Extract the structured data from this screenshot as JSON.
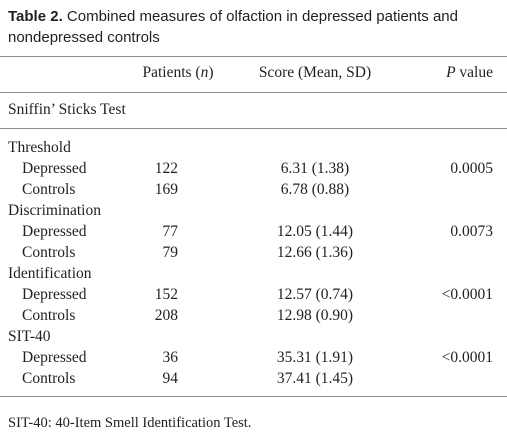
{
  "title": {
    "label": "Table 2.",
    "text": "Combined measures of olfaction in depressed patients and nondepressed controls"
  },
  "header": {
    "patients": {
      "pre": "Patients (",
      "italic": "n",
      "post": ")"
    },
    "score": "Score (Mean, SD)",
    "p": {
      "italic": "P",
      "post": " value"
    }
  },
  "section": "Sniffin’ Sticks Test",
  "groups": [
    {
      "name": "Threshold",
      "rows": [
        {
          "label": "Depressed",
          "patients": 122,
          "score": "6.31 (1.38)",
          "p": "0.0005"
        },
        {
          "label": "Controls",
          "patients": 169,
          "score": "6.78 (0.88)"
        }
      ]
    },
    {
      "name": "Discrimination",
      "rows": [
        {
          "label": "Depressed",
          "patients": 77,
          "score": "12.05 (1.44)",
          "p": "0.0073"
        },
        {
          "label": "Controls",
          "patients": 79,
          "score": "12.66 (1.36)"
        }
      ]
    },
    {
      "name": "Identification",
      "rows": [
        {
          "label": "Depressed",
          "patients": 152,
          "score": "12.57 (0.74)",
          "p": "<0.0001"
        },
        {
          "label": "Controls",
          "patients": 208,
          "score": "12.98 (0.90)"
        }
      ]
    },
    {
      "name": "SIT-40",
      "rows": [
        {
          "label": "Depressed",
          "patients": 36,
          "score": "35.31 (1.91)",
          "p": "<0.0001"
        },
        {
          "label": "Controls",
          "patients": 94,
          "score": "37.41 (1.45)"
        }
      ]
    }
  ],
  "footnote": "SIT-40: 40-Item Smell Identification Test."
}
